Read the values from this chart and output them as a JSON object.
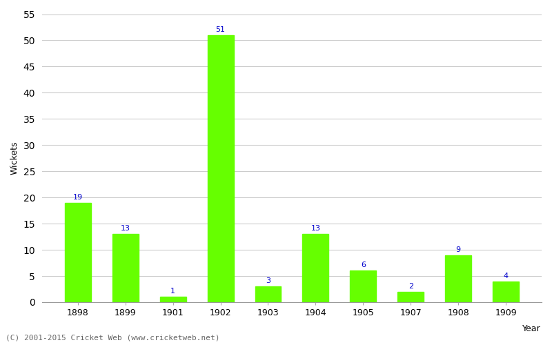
{
  "categories": [
    "1898",
    "1899",
    "1901",
    "1902",
    "1903",
    "1904",
    "1905",
    "1907",
    "1908",
    "1909"
  ],
  "values": [
    19,
    13,
    1,
    51,
    3,
    13,
    6,
    2,
    9,
    4
  ],
  "bar_color": "#66ff00",
  "bar_edge_color": "#66ff00",
  "label_color": "#0000cc",
  "xlabel": "Year",
  "ylabel": "Wickets",
  "ylim": [
    0,
    55
  ],
  "yticks": [
    0,
    5,
    10,
    15,
    20,
    25,
    30,
    35,
    40,
    45,
    50,
    55
  ],
  "grid_color": "#cccccc",
  "bg_color": "#ffffff",
  "footer": "(C) 2001-2015 Cricket Web (www.cricketweb.net)",
  "label_fontsize": 8,
  "axis_fontsize": 9,
  "bar_width": 0.55
}
